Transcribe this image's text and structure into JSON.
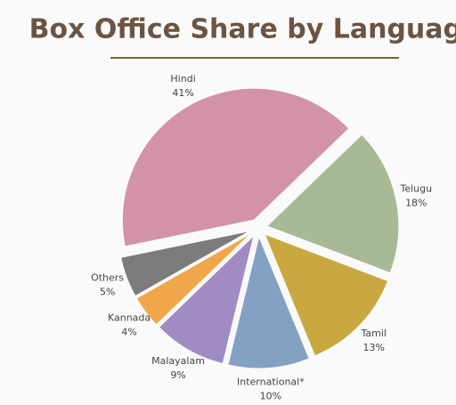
{
  "chart_data": {
    "type": "pie",
    "title": "Box Office Share by Language",
    "categories": [
      "Telugu",
      "Tamil",
      "International*",
      "Malayalam",
      "Kannada",
      "Others",
      "Hindi"
    ],
    "values": [
      18,
      13,
      10,
      9,
      4,
      5,
      41
    ],
    "value_labels": [
      "18%",
      "13%",
      "10%",
      "9%",
      "4%",
      "5%",
      "41%"
    ],
    "colors": [
      "#a8b996",
      "#c9a83f",
      "#84a1c3",
      "#a08bc3",
      "#f0a74a",
      "#7b7b7b",
      "#d293a6"
    ]
  }
}
